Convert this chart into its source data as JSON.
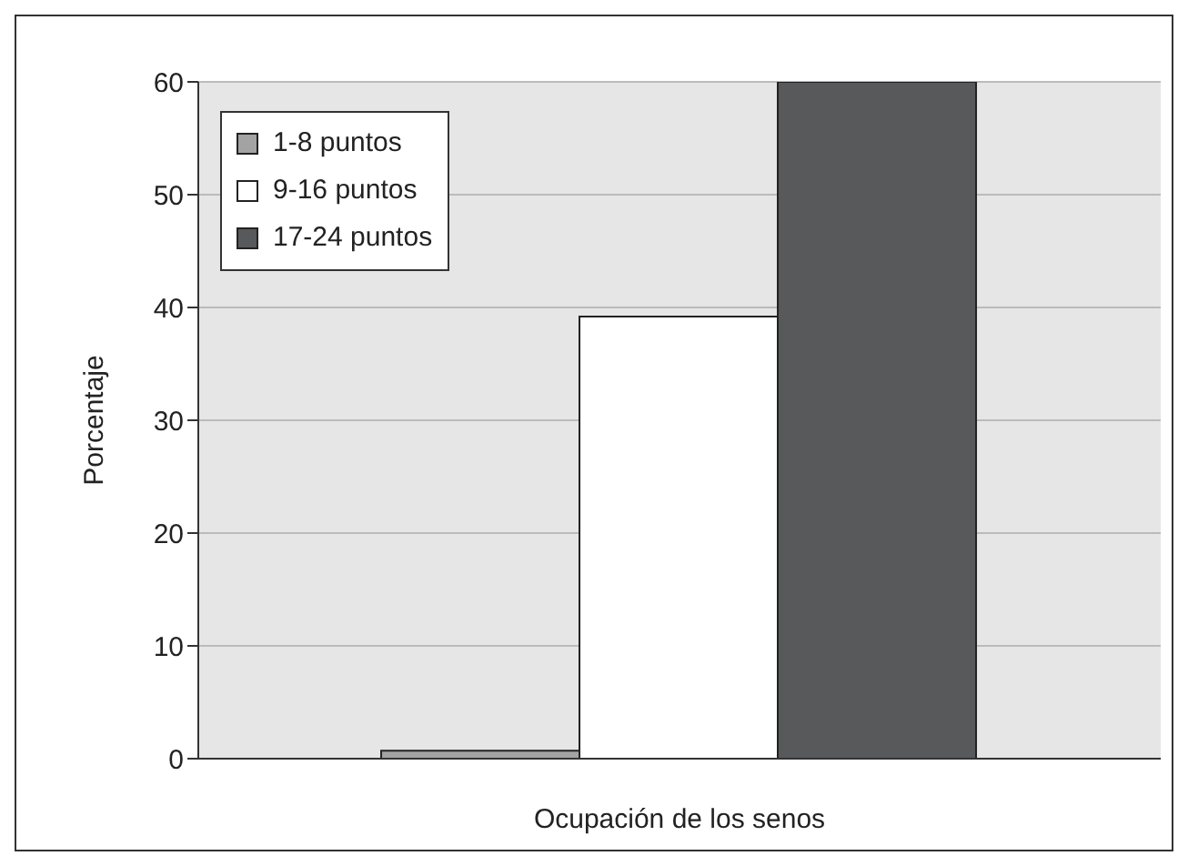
{
  "chart_data": {
    "type": "bar",
    "xlabel": "Ocupación de los senos",
    "ylabel": "Porcentaje",
    "categories": [
      null
    ],
    "series": [
      {
        "name": "1-8 puntos",
        "color": "#a3a3a3",
        "values": [
          0.7
        ]
      },
      {
        "name": "9-16 puntos",
        "color": "#ffffff",
        "values": [
          39.2
        ]
      },
      {
        "name": "17-24 puntos",
        "color": "#58595b",
        "values": [
          60
        ]
      }
    ],
    "ylim": [
      0,
      60
    ],
    "yticks": [
      0,
      10,
      20,
      30,
      40,
      50,
      60
    ],
    "grid": "y",
    "legend": "top left"
  }
}
